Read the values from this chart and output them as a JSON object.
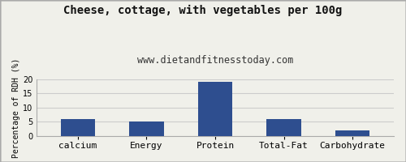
{
  "title": "Cheese, cottage, with vegetables per 100g",
  "subtitle": "www.dietandfitnesstoday.com",
  "categories": [
    "calcium",
    "Energy",
    "Protein",
    "Total-Fat",
    "Carbohydrate"
  ],
  "values": [
    6.0,
    5.0,
    19.0,
    6.0,
    2.0
  ],
  "bar_color": "#2e4e8f",
  "ylabel": "Percentage of RDH (%)",
  "ylim": [
    0,
    20
  ],
  "yticks": [
    0,
    5,
    10,
    15,
    20
  ],
  "background_color": "#f0f0ea",
  "title_fontsize": 10,
  "subtitle_fontsize": 8.5,
  "ylabel_fontsize": 7,
  "xlabel_fontsize": 8,
  "grid_color": "#cccccc",
  "border_color": "#aaaaaa"
}
